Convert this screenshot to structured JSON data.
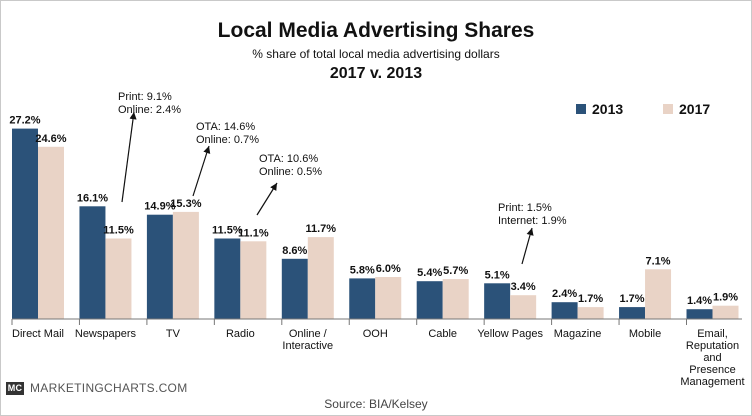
{
  "header": {
    "title": "Local Media Advertising Shares",
    "subtitle": "% share of total local media advertising dollars",
    "period": "2017 v. 2013"
  },
  "colors": {
    "series_2013": "#2b5279",
    "series_2017": "#e9d3c6"
  },
  "chart_data": {
    "type": "bar",
    "title": "Local Media Advertising Shares",
    "subtitle": "% share of total local media advertising dollars",
    "categories": [
      "Direct Mail",
      "Newspapers",
      "TV",
      "Radio",
      "Online / Interactive",
      "OOH",
      "Cable",
      "Yellow Pages",
      "Magazine",
      "Mobile",
      "Email, Reputation and Presence Management"
    ],
    "series": [
      {
        "name": "2013",
        "values": [
          27.2,
          16.1,
          14.9,
          11.5,
          8.6,
          5.8,
          5.4,
          5.1,
          2.4,
          1.7,
          1.4
        ],
        "labels": [
          "27.2%",
          "16.1%",
          "14.9%",
          "11.5%",
          "8.6%",
          "5.8%",
          "5.4%",
          "5.1%",
          "2.4%",
          "1.7%",
          "1.4%"
        ]
      },
      {
        "name": "2017",
        "values": [
          24.6,
          11.5,
          15.3,
          11.1,
          11.7,
          6.0,
          5.7,
          3.4,
          1.7,
          7.1,
          1.9
        ],
        "labels": [
          "24.6%",
          "11.5%",
          "15.3%",
          "11.1%",
          "11.7%",
          "6.0%",
          "5.7%",
          "3.4%",
          "1.7%",
          "7.1%",
          "1.9%"
        ]
      }
    ],
    "legend": "top-right",
    "grid": false,
    "ylim": [
      0,
      28
    ],
    "annotations": [
      {
        "category": "Newspapers",
        "lines": [
          "Print: 9.1%",
          "Online: 2.4%"
        ]
      },
      {
        "category": "TV",
        "lines": [
          "OTA: 14.6%",
          "Online: 0.7%"
        ]
      },
      {
        "category": "Radio",
        "lines": [
          "OTA: 10.6%",
          "Online: 0.5%"
        ]
      },
      {
        "category": "Yellow Pages",
        "lines": [
          "Print: 1.5%",
          "Internet: 1.9%"
        ]
      }
    ]
  },
  "tick_labels": [
    "Direct Mail",
    "Newspapers",
    "TV",
    "Radio",
    "Online /\nInteractive",
    "OOH",
    "Cable",
    "Yellow Pages",
    "Magazine",
    "Mobile",
    "Email,\nReputation\nand\nPresence\nManagement"
  ],
  "annotation_text": {
    "newspapers": "Print: 9.1%\nOnline: 2.4%",
    "tv": "OTA: 14.6%\nOnline: 0.7%",
    "radio": "OTA: 10.6%\nOnline: 0.5%",
    "yellow_pages": "Print: 1.5%\nInternet: 1.9%"
  },
  "footer": {
    "logo": "MC",
    "brand": "MARKETINGCHARTS.COM",
    "source": "Source: BIA/Kelsey"
  }
}
